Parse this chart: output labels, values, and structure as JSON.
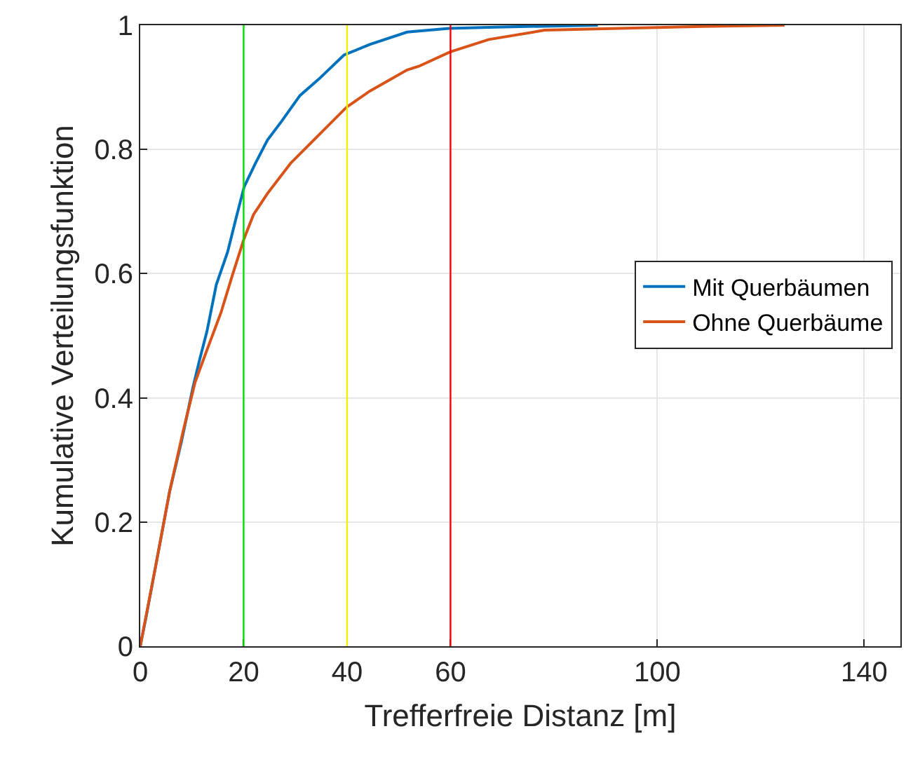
{
  "chart_data": {
    "type": "line",
    "xlabel": "Trefferfreie Distanz [m]",
    "ylabel": "Kumulative Verteilungsfunktion",
    "xlim": [
      0,
      147
    ],
    "xticks": [
      0,
      20,
      40,
      60,
      100,
      140
    ],
    "ylim": [
      0,
      1
    ],
    "yticks": [
      0,
      0.2,
      0.4,
      0.6,
      0.8,
      1
    ],
    "grid": true,
    "legend": "right",
    "line_style": "solid",
    "series": [
      {
        "name": "Mit Querbäumen",
        "color": "#0072bd",
        "x": [
          0,
          1.2,
          3.0,
          5.7,
          7.9,
          10.2,
          11.5,
          12.9,
          14.7,
          16.9,
          18.7,
          20.1,
          22.3,
          24.6,
          27.3,
          30.9,
          34.5,
          39.4,
          44.4,
          51.6,
          59.7,
          68.7,
          88.5
        ],
        "values": [
          0,
          0.05,
          0.13,
          0.25,
          0.327,
          0.417,
          0.462,
          0.507,
          0.582,
          0.635,
          0.695,
          0.74,
          0.778,
          0.815,
          0.845,
          0.887,
          0.913,
          0.952,
          0.969,
          0.989,
          0.995,
          0.997,
          1.0
        ]
      },
      {
        "name": "Ohne Querbäume",
        "color": "#d95319",
        "x": [
          0,
          3.0,
          5.7,
          8.4,
          10.6,
          12.9,
          15.6,
          17.8,
          20.1,
          21.9,
          24.6,
          29.1,
          32.7,
          39.9,
          44.4,
          51.6,
          53.9,
          59.9,
          67.4,
          78.2,
          92.5,
          108.7,
          124.6
        ],
        "values": [
          0,
          0.13,
          0.25,
          0.35,
          0.425,
          0.477,
          0.537,
          0.597,
          0.657,
          0.695,
          0.729,
          0.778,
          0.808,
          0.868,
          0.894,
          0.928,
          0.934,
          0.957,
          0.977,
          0.992,
          0.995,
          0.998,
          1.0
        ]
      }
    ],
    "ref_lines": [
      {
        "axis": "x",
        "value": 20,
        "color": "#00e000"
      },
      {
        "axis": "x",
        "value": 40,
        "color": "#f0f000"
      },
      {
        "axis": "x",
        "value": 60,
        "color": "#ff0000"
      }
    ]
  }
}
